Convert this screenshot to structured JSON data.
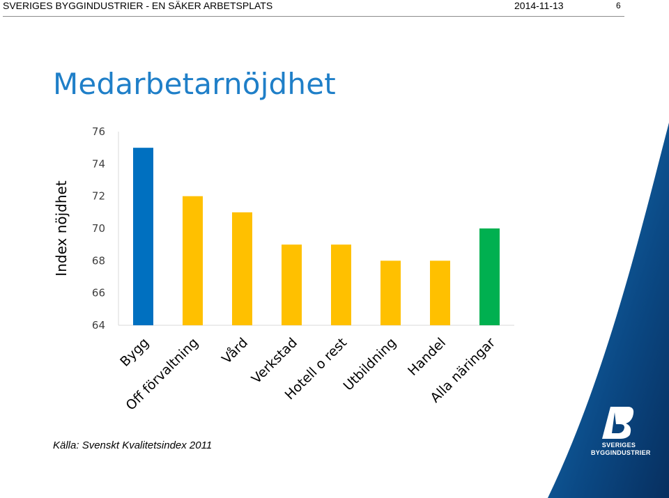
{
  "header": {
    "title": "SVERIGES BYGGINDUSTRIER - EN SÄKER ARBETSPLATS",
    "date": "2014-11-13",
    "page_number": "6"
  },
  "slide": {
    "title": "Medarbetarnöjdhet",
    "source": "Källa: Svenskt Kvalitetsindex 2011"
  },
  "logo": {
    "line1": "SVERIGES",
    "line2": "BYGGINDUSTRIER"
  },
  "colors": {
    "blue": "#0070c0",
    "yellow": "#ffc000",
    "green": "#00b050",
    "title": "#1f7fc8"
  },
  "chart_data": {
    "type": "bar",
    "ylabel": "Index nöjdhet",
    "ylim": [
      64,
      76
    ],
    "yticks": [
      76,
      74,
      72,
      70,
      68,
      66,
      64
    ],
    "categories": [
      "Bygg",
      "Off förvaltning",
      "Vård",
      "Verkstad",
      "Hotell o rest",
      "Utbildning",
      "Handel",
      "Alla näringar"
    ],
    "values": [
      75,
      72,
      71,
      69,
      69,
      68,
      68,
      70
    ],
    "bar_colors": [
      "#0070c0",
      "#ffc000",
      "#ffc000",
      "#ffc000",
      "#ffc000",
      "#ffc000",
      "#ffc000",
      "#00b050"
    ],
    "grid": false
  }
}
